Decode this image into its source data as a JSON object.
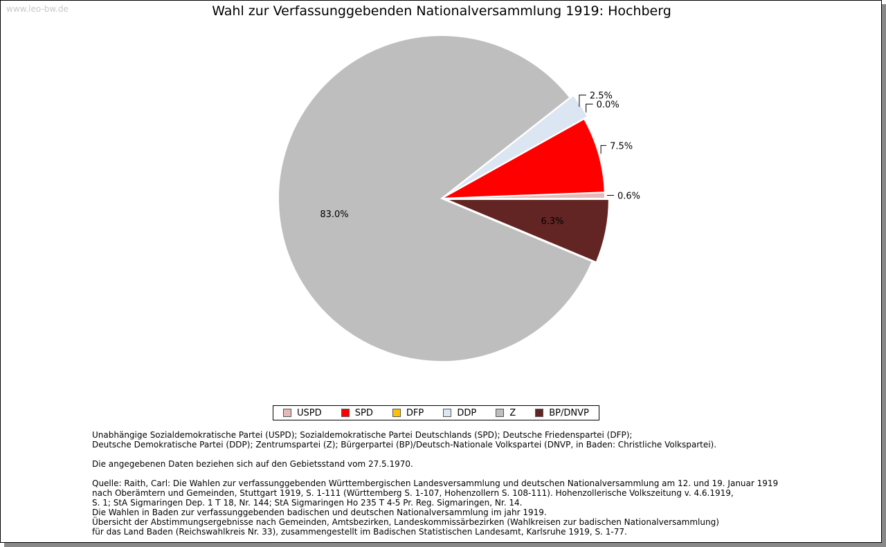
{
  "watermark": "www.leo-bw.de",
  "chart_data": {
    "type": "pie",
    "title": "Wahl zur Verfassunggebenden Nationalversammlung 1919: Hochberg",
    "categories": [
      "USPD",
      "SPD",
      "DFP",
      "DDP",
      "Z",
      "BP/DNVP"
    ],
    "values": [
      0.6,
      7.5,
      0.0,
      2.5,
      83.0,
      6.3
    ],
    "labels": [
      "0.6%",
      "7.5%",
      "0.0%",
      "2.5%",
      "83.0%",
      "6.3%"
    ],
    "colors": [
      "#e6b9b8",
      "#ff0000",
      "#ffc000",
      "#dce6f2",
      "#bebebe",
      "#632523"
    ],
    "legend_position": "bottom"
  },
  "notes": {
    "p1": [
      "Unabhängige Sozialdemokratische Partei (USPD); Sozialdemokratische Partei Deutschlands (SPD); Deutsche Friedenspartei (DFP);",
      "Deutsche Demokratische Partei (DDP); Zentrumspartei (Z); Bürgerpartei (BP)/Deutsch-Nationale Volkspartei (DNVP, in Baden: Christliche Volkspartei)."
    ],
    "p2": [
      "Die angegebenen Daten beziehen sich auf den Gebietsstand vom 27.5.1970."
    ],
    "p3": [
      "Quelle: Raith, Carl: Die Wahlen zur verfassunggebenden Württembergischen Landesversammlung und deutschen Nationalversammlung am 12. und 19. Januar 1919",
      "nach Oberämtern und Gemeinden, Stuttgart 1919, S. 1-111 (Württemberg S. 1-107, Hohenzollern S. 108-111). Hohenzollerische Volkszeitung v. 4.6.1919,",
      "S. 1; StA Sigmaringen Dep. 1 T 18, Nr. 144; StA Sigmaringen Ho 235 T 4-5 Pr. Reg. Sigmaringen, Nr. 14.",
      "Die Wahlen in Baden zur verfassunggebenden badischen und deutschen Nationalversammlung im jahr 1919.",
      "Übersicht der Abstimmungsergebnisse nach Gemeinden, Amtsbezirken, Landeskommissärbezirken (Wahlkreisen zur badischen Nationalversammlung)",
      "für das Land Baden (Reichswahlkreis Nr. 33), zusammengestellt im Badischen Statistischen Landesamt, Karlsruhe 1919, S. 1-77."
    ]
  }
}
